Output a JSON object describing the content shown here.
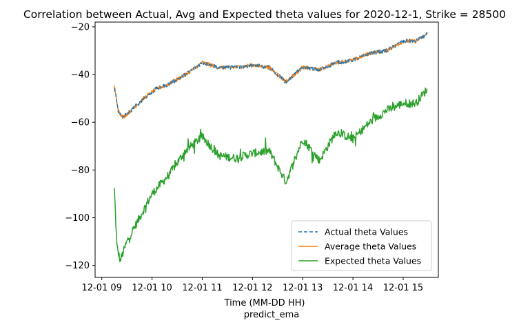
{
  "chart_data": {
    "type": "line",
    "title": "Correlation between Actual, Avg and Expected theta values for 2020-12-1, Strike = 28500",
    "xlabel": "Time (MM-DD HH)",
    "xlabel2": "predict_ema",
    "ylabel": "",
    "xlim": [
      "2020-12-01 08:52",
      "2020-12-01 15:42"
    ],
    "ylim": [
      -125,
      -18
    ],
    "x_ticks": [
      {
        "label": "12-01 09",
        "t": "2020-12-01 09:00"
      },
      {
        "label": "12-01 10",
        "t": "2020-12-01 10:00"
      },
      {
        "label": "12-01 11",
        "t": "2020-12-01 11:00"
      },
      {
        "label": "12-01 12",
        "t": "2020-12-01 12:00"
      },
      {
        "label": "12-01 13",
        "t": "2020-12-01 13:00"
      },
      {
        "label": "12-01 14",
        "t": "2020-12-01 14:00"
      },
      {
        "label": "12-01 15",
        "t": "2020-12-01 15:00"
      }
    ],
    "y_ticks": [
      -20,
      -40,
      -60,
      -80,
      -100,
      -120
    ],
    "grid": false,
    "legend_position": "lower-right",
    "series": [
      {
        "name": "Actual theta Values",
        "color": "#1f77b4",
        "style": "dashed",
        "x": [
          "2020-12-01 09:15",
          "2020-12-01 09:20",
          "2020-12-01 09:25",
          "2020-12-01 09:35",
          "2020-12-01 09:50",
          "2020-12-01 10:05",
          "2020-12-01 10:20",
          "2020-12-01 10:40",
          "2020-12-01 11:00",
          "2020-12-01 11:20",
          "2020-12-01 11:40",
          "2020-12-01 12:00",
          "2020-12-01 12:20",
          "2020-12-01 12:40",
          "2020-12-01 13:00",
          "2020-12-01 13:20",
          "2020-12-01 13:40",
          "2020-12-01 14:00",
          "2020-12-01 14:20",
          "2020-12-01 14:40",
          "2020-12-01 15:00",
          "2020-12-01 15:15",
          "2020-12-01 15:29"
        ],
        "y": [
          -45,
          -56,
          -58,
          -55,
          -50,
          -46,
          -44,
          -40,
          -35,
          -37,
          -37,
          -36,
          -37,
          -43,
          -37,
          -38,
          -35,
          -34,
          -31,
          -30,
          -26,
          -26,
          -23
        ]
      },
      {
        "name": "Average theta Values",
        "color": "#ff7f0e",
        "style": "solid",
        "x": [
          "2020-12-01 09:15",
          "2020-12-01 09:20",
          "2020-12-01 09:25",
          "2020-12-01 09:35",
          "2020-12-01 09:50",
          "2020-12-01 10:05",
          "2020-12-01 10:20",
          "2020-12-01 10:40",
          "2020-12-01 11:00",
          "2020-12-01 11:20",
          "2020-12-01 11:40",
          "2020-12-01 12:00",
          "2020-12-01 12:20",
          "2020-12-01 12:40",
          "2020-12-01 13:00",
          "2020-12-01 13:20",
          "2020-12-01 13:40",
          "2020-12-01 14:00",
          "2020-12-01 14:20",
          "2020-12-01 14:40",
          "2020-12-01 15:00",
          "2020-12-01 15:15",
          "2020-12-01 15:29"
        ],
        "y": [
          -45,
          -55,
          -58,
          -55,
          -50,
          -46,
          -44,
          -40,
          -35,
          -37,
          -37,
          -36,
          -37,
          -43,
          -37,
          -38,
          -35,
          -34,
          -31,
          -30,
          -26,
          -26,
          -23
        ]
      },
      {
        "name": "Expected theta Values",
        "color": "#2ca02c",
        "style": "solid",
        "x": [
          "2020-12-01 09:15",
          "2020-12-01 09:18",
          "2020-12-01 09:22",
          "2020-12-01 09:30",
          "2020-12-01 09:45",
          "2020-12-01 10:00",
          "2020-12-01 10:20",
          "2020-12-01 10:40",
          "2020-12-01 11:00",
          "2020-12-01 11:20",
          "2020-12-01 11:40",
          "2020-12-01 12:00",
          "2020-12-01 12:20",
          "2020-12-01 12:40",
          "2020-12-01 13:00",
          "2020-12-01 13:20",
          "2020-12-01 13:40",
          "2020-12-01 14:00",
          "2020-12-01 14:20",
          "2020-12-01 14:40",
          "2020-12-01 15:00",
          "2020-12-01 15:15",
          "2020-12-01 15:29"
        ],
        "y": [
          -88,
          -112,
          -118,
          -110,
          -100,
          -90,
          -82,
          -72,
          -66,
          -74,
          -75,
          -73,
          -72,
          -85,
          -67,
          -76,
          -64,
          -67,
          -60,
          -55,
          -52,
          -52,
          -46
        ]
      }
    ]
  }
}
